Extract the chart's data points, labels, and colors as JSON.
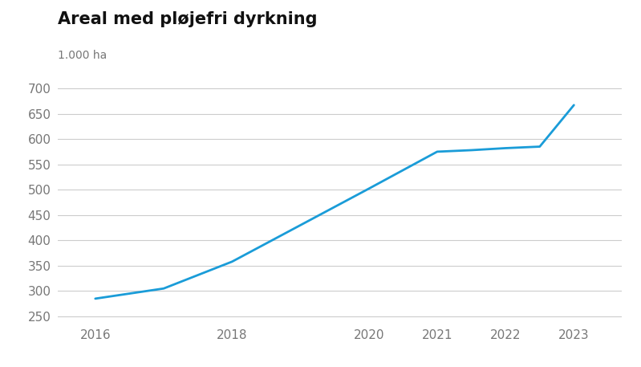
{
  "title": "Areal med pløjefri dyrkning",
  "ylabel": "1.000 ha",
  "years": [
    2016,
    2017,
    2018,
    2019,
    2020,
    2021,
    2021.5,
    2022,
    2022.5,
    2023
  ],
  "values": [
    285,
    305,
    358,
    430,
    502,
    575,
    578,
    582,
    585,
    667
  ],
  "line_color": "#1a9cd8",
  "line_width": 2.0,
  "background_color": "#ffffff",
  "grid_color": "#cccccc",
  "xticks": [
    2016,
    2018,
    2020,
    2021,
    2022,
    2023
  ],
  "yticks": [
    250,
    300,
    350,
    400,
    450,
    500,
    550,
    600,
    650,
    700
  ],
  "ylim": [
    237,
    715
  ],
  "xlim": [
    2015.45,
    2023.7
  ],
  "title_fontsize": 15,
  "ylabel_fontsize": 10,
  "tick_fontsize": 11,
  "tick_color": "#777777",
  "title_color": "#111111"
}
